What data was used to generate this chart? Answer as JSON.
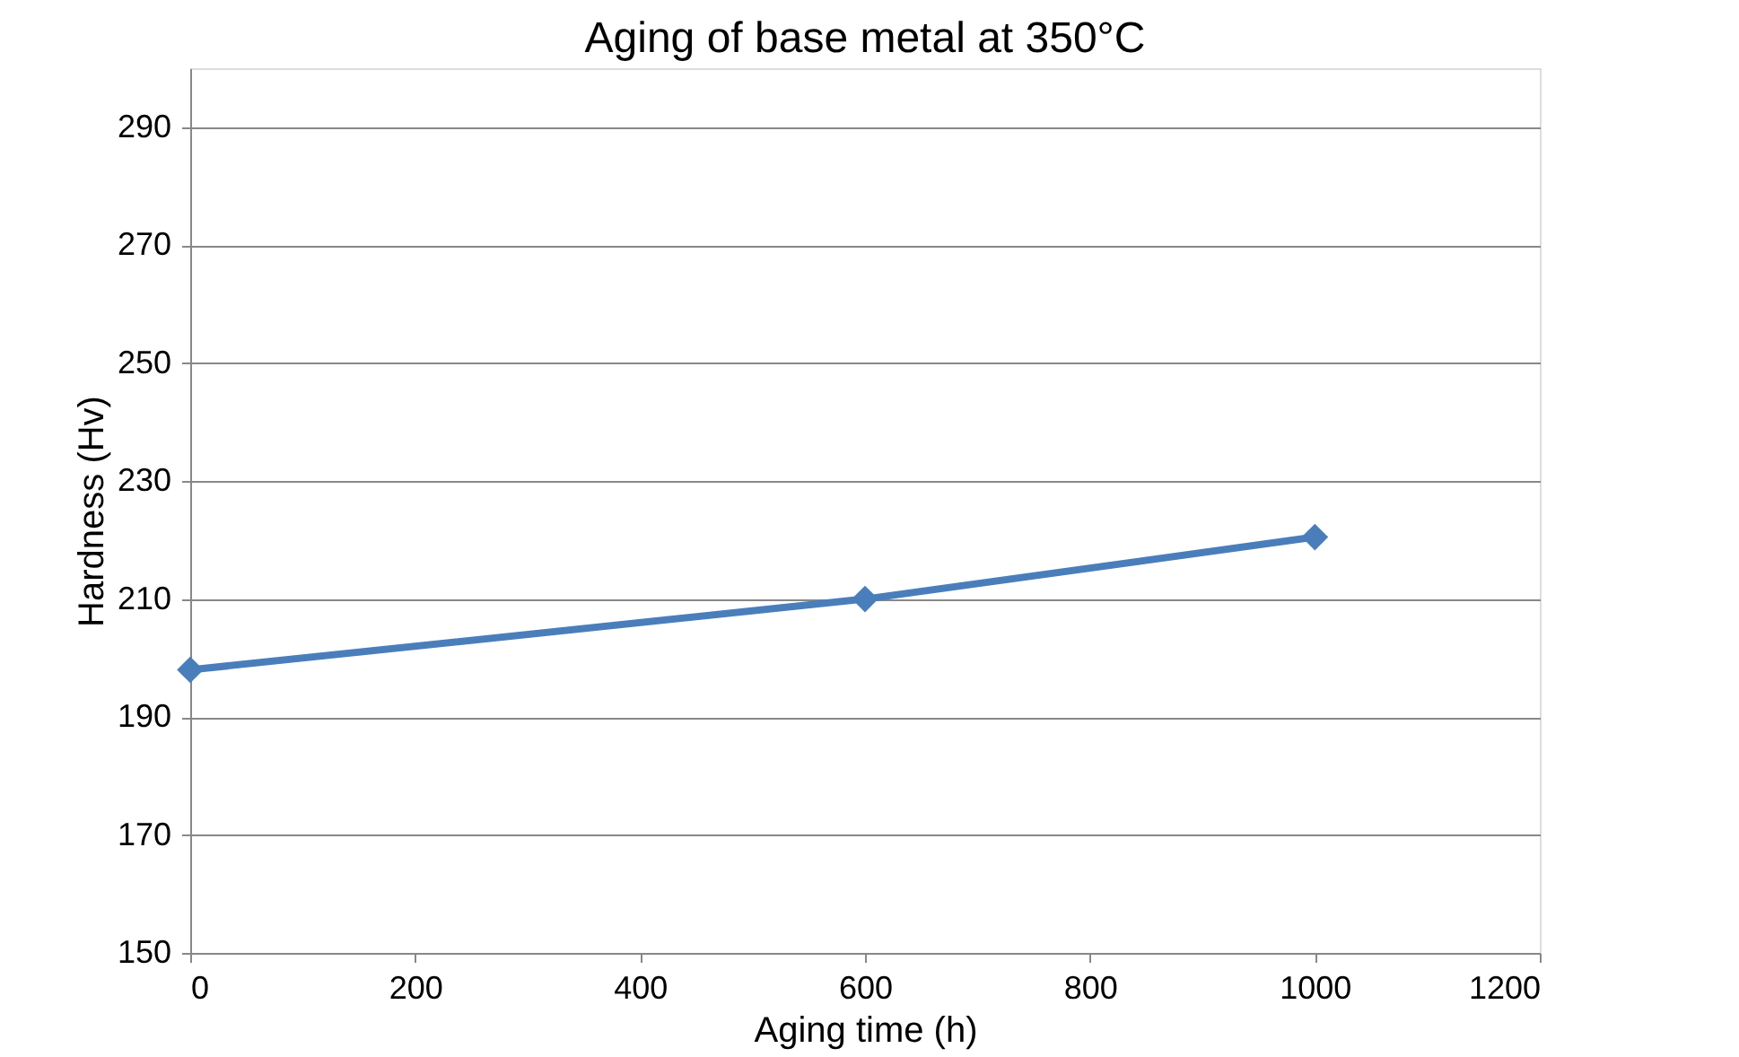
{
  "chart_data": {
    "type": "line",
    "title": "Aging of base metal at 350°C",
    "xlabel": "Aging time (h)",
    "ylabel": "Hardness (Hv)",
    "x": [
      0,
      600,
      1000
    ],
    "series": [
      {
        "color": "#4a7ebb",
        "values": [
          198,
          210,
          220.5
        ]
      }
    ],
    "xlim": [
      0,
      1200
    ],
    "xticks": [
      0,
      200,
      400,
      600,
      800,
      1000,
      1200
    ],
    "ylim": [
      150,
      300
    ],
    "yticks": [
      150,
      170,
      190,
      210,
      230,
      250,
      270,
      290
    ],
    "grid": "y",
    "legend": false,
    "marker": "diamond",
    "line_style": "solid"
  }
}
